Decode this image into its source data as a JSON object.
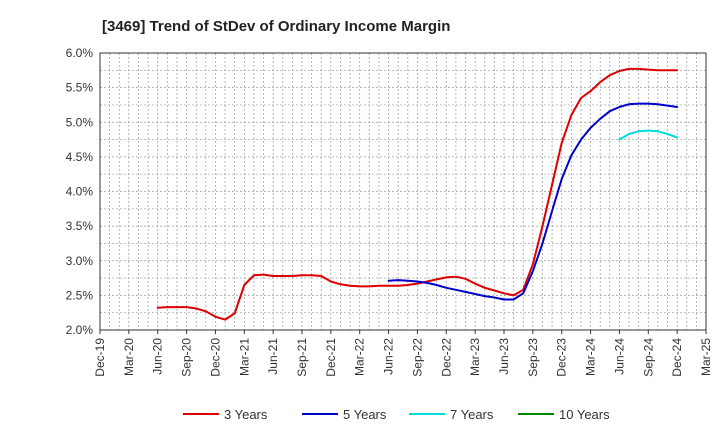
{
  "chart_data": {
    "type": "line",
    "title": "[3469]  Trend of StDev of Ordinary Income Margin",
    "xlabel": "",
    "ylabel": "",
    "ylim": [
      2.0,
      6.0
    ],
    "y_ticks": [
      "2.0%",
      "2.5%",
      "3.0%",
      "3.5%",
      "4.0%",
      "4.5%",
      "5.0%",
      "5.5%",
      "6.0%"
    ],
    "x_ticks": [
      "Dec-19",
      "Mar-20",
      "Jun-20",
      "Sep-20",
      "Dec-20",
      "Mar-21",
      "Jun-21",
      "Sep-21",
      "Dec-21",
      "Mar-22",
      "Jun-22",
      "Sep-22",
      "Dec-22",
      "Mar-23",
      "Jun-23",
      "Sep-23",
      "Dec-23",
      "Mar-24",
      "Jun-24",
      "Sep-24",
      "Dec-24",
      "Mar-25"
    ],
    "grid": true,
    "legend_position": "bottom",
    "series": [
      {
        "name": "3 Years",
        "color": "#dd0000",
        "points": [
          [
            "Jun-20",
            2.32
          ],
          [
            "Jul-20",
            2.33
          ],
          [
            "Aug-20",
            2.33
          ],
          [
            "Sep-20",
            2.33
          ],
          [
            "Oct-20",
            2.31
          ],
          [
            "Nov-20",
            2.27
          ],
          [
            "Dec-20",
            2.19
          ],
          [
            "Jan-21",
            2.15
          ],
          [
            "Feb-21",
            2.24
          ],
          [
            "Mar-21",
            2.65
          ],
          [
            "Apr-21",
            2.79
          ],
          [
            "May-21",
            2.8
          ],
          [
            "Jun-21",
            2.78
          ],
          [
            "Jul-21",
            2.78
          ],
          [
            "Aug-21",
            2.78
          ],
          [
            "Sep-21",
            2.79
          ],
          [
            "Oct-21",
            2.79
          ],
          [
            "Nov-21",
            2.78
          ],
          [
            "Dec-21",
            2.7
          ],
          [
            "Jan-22",
            2.66
          ],
          [
            "Feb-22",
            2.64
          ],
          [
            "Mar-22",
            2.63
          ],
          [
            "Apr-22",
            2.63
          ],
          [
            "May-22",
            2.64
          ],
          [
            "Jun-22",
            2.64
          ],
          [
            "Jul-22",
            2.64
          ],
          [
            "Aug-22",
            2.65
          ],
          [
            "Sep-22",
            2.67
          ],
          [
            "Oct-22",
            2.7
          ],
          [
            "Nov-22",
            2.73
          ],
          [
            "Dec-22",
            2.76
          ],
          [
            "Jan-23",
            2.77
          ],
          [
            "Feb-23",
            2.74
          ],
          [
            "Mar-23",
            2.67
          ],
          [
            "Apr-23",
            2.61
          ],
          [
            "May-23",
            2.57
          ],
          [
            "Jun-23",
            2.53
          ],
          [
            "Jul-23",
            2.5
          ],
          [
            "Aug-23",
            2.58
          ],
          [
            "Sep-23",
            2.95
          ],
          [
            "Oct-23",
            3.5
          ],
          [
            "Nov-23",
            4.1
          ],
          [
            "Dec-23",
            4.7
          ],
          [
            "Jan-24",
            5.1
          ],
          [
            "Feb-24",
            5.35
          ],
          [
            "Mar-24",
            5.45
          ],
          [
            "Apr-24",
            5.58
          ],
          [
            "May-24",
            5.68
          ],
          [
            "Jun-24",
            5.74
          ],
          [
            "Jul-24",
            5.77
          ],
          [
            "Aug-24",
            5.77
          ],
          [
            "Sep-24",
            5.76
          ],
          [
            "Oct-24",
            5.75
          ],
          [
            "Nov-24",
            5.75
          ],
          [
            "Dec-24",
            5.75
          ]
        ]
      },
      {
        "name": "5 Years",
        "color": "#0000cc",
        "points": [
          [
            "Jun-22",
            2.71
          ],
          [
            "Jul-22",
            2.72
          ],
          [
            "Aug-22",
            2.71
          ],
          [
            "Sep-22",
            2.7
          ],
          [
            "Oct-22",
            2.68
          ],
          [
            "Nov-22",
            2.65
          ],
          [
            "Dec-22",
            2.61
          ],
          [
            "Jan-23",
            2.58
          ],
          [
            "Feb-23",
            2.55
          ],
          [
            "Mar-23",
            2.52
          ],
          [
            "Apr-23",
            2.49
          ],
          [
            "May-23",
            2.47
          ],
          [
            "Jun-23",
            2.44
          ],
          [
            "Jul-23",
            2.44
          ],
          [
            "Aug-23",
            2.53
          ],
          [
            "Sep-23",
            2.85
          ],
          [
            "Oct-23",
            3.25
          ],
          [
            "Nov-23",
            3.72
          ],
          [
            "Dec-23",
            4.18
          ],
          [
            "Jan-24",
            4.52
          ],
          [
            "Feb-24",
            4.75
          ],
          [
            "Mar-24",
            4.92
          ],
          [
            "Apr-24",
            5.05
          ],
          [
            "May-24",
            5.16
          ],
          [
            "Jun-24",
            5.22
          ],
          [
            "Jul-24",
            5.26
          ],
          [
            "Aug-24",
            5.27
          ],
          [
            "Sep-24",
            5.27
          ],
          [
            "Oct-24",
            5.26
          ],
          [
            "Nov-24",
            5.24
          ],
          [
            "Dec-24",
            5.22
          ]
        ]
      },
      {
        "name": "7 Years",
        "color": "#00dddd",
        "points": [
          [
            "Jun-24",
            4.75
          ],
          [
            "Jul-24",
            4.83
          ],
          [
            "Aug-24",
            4.87
          ],
          [
            "Sep-24",
            4.88
          ],
          [
            "Oct-24",
            4.87
          ],
          [
            "Nov-24",
            4.83
          ],
          [
            "Dec-24",
            4.78
          ]
        ]
      },
      {
        "name": "10 Years",
        "color": "#008800",
        "points": []
      }
    ]
  }
}
